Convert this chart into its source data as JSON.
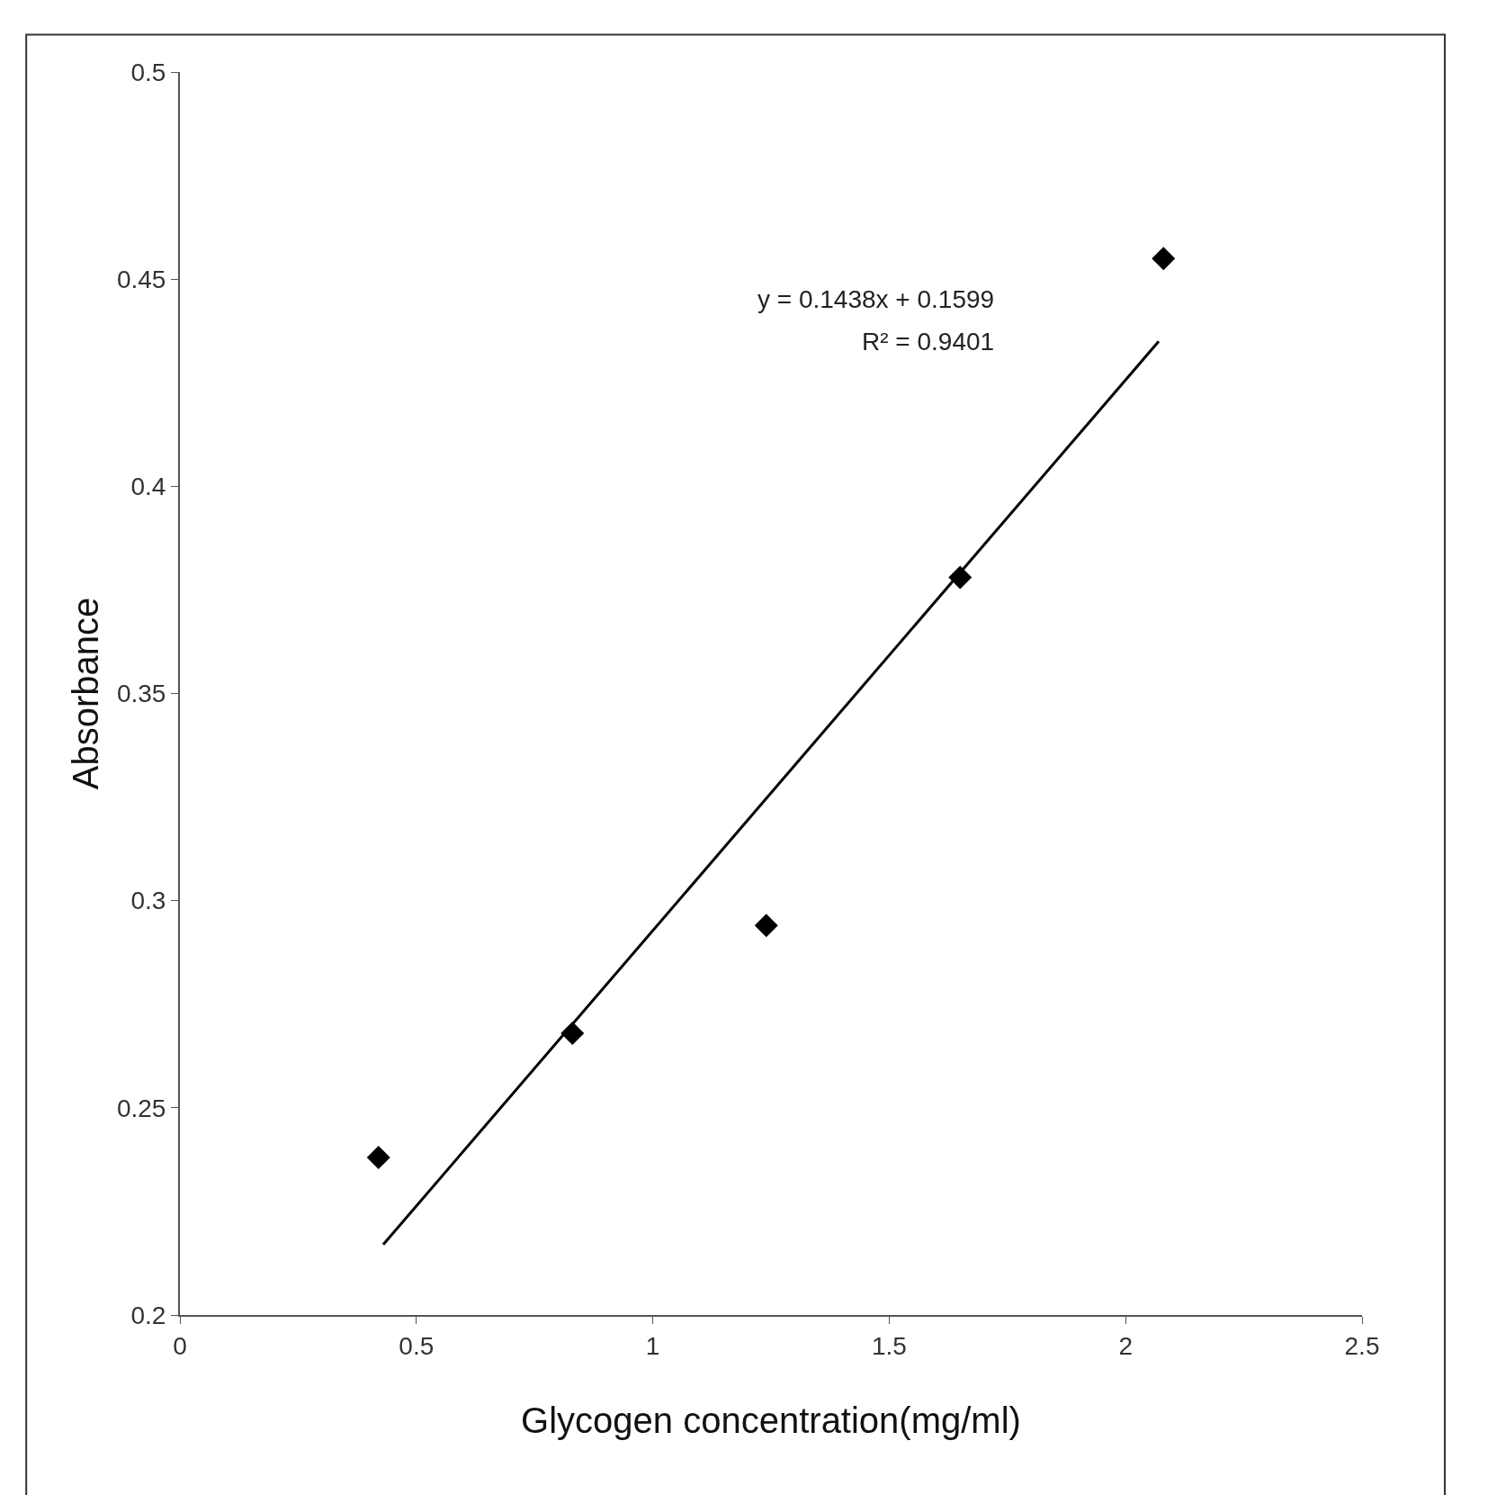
{
  "chart_data": {
    "type": "scatter",
    "xlabel": "Glycogen concentration(mg/ml)",
    "ylabel": "Absorbance",
    "series": [
      {
        "type": "scatter",
        "color": "#000000",
        "x": [
          0.42,
          0.83,
          1.24,
          1.65,
          2.08
        ],
        "values": [
          0.238,
          0.268,
          0.294,
          0.378,
          0.455
        ],
        "marker": "diamond"
      },
      {
        "type": "line",
        "color": "#000000",
        "x": [
          0.43,
          2.07
        ],
        "values": [
          0.217,
          0.435
        ],
        "marker": "none",
        "line_style": "solid"
      }
    ],
    "annotations": [
      "y = 0.1438x + 0.1599",
      "R² = 0.9401"
    ],
    "xlim": [
      0,
      2.5
    ],
    "xticks": [
      0,
      0.5,
      1,
      1.5,
      2,
      2.5
    ],
    "ylim": [
      0.2,
      0.5
    ],
    "yticks": [
      0.2,
      0.25,
      0.3,
      0.35,
      0.4,
      0.45,
      0.5
    ],
    "grid": false
  }
}
